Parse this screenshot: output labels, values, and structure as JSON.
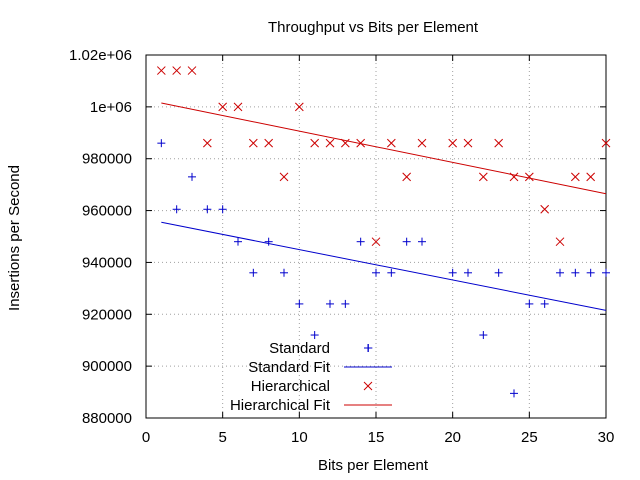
{
  "chart_data": {
    "type": "scatter",
    "title": "Throughput vs Bits per Element",
    "xlabel": "Bits per Element",
    "ylabel": "Insertions per Second",
    "xlim": [
      0,
      30
    ],
    "ylim": [
      880000,
      1020000
    ],
    "x_ticks": [
      0,
      5,
      10,
      15,
      20,
      25,
      30
    ],
    "x_tick_labels": [
      "0",
      "5",
      "10",
      "15",
      "20",
      "25",
      "30"
    ],
    "y_ticks": [
      880000,
      900000,
      920000,
      940000,
      960000,
      980000,
      1000000,
      1020000
    ],
    "y_tick_labels": [
      "880000",
      "900000",
      "920000",
      "940000",
      "960000",
      "980000",
      "1e+06",
      "1.02e+06"
    ],
    "grid": true,
    "legend_position": "bottom-left",
    "series": [
      {
        "name": "Standard",
        "kind": "points",
        "marker": "plus",
        "color": "#0000cc",
        "x": [
          1,
          2,
          3,
          4,
          5,
          6,
          7,
          8,
          9,
          10,
          11,
          12,
          13,
          14,
          14.5,
          15,
          16,
          17,
          18,
          20,
          21,
          22,
          23,
          24,
          25,
          26,
          27,
          28,
          29,
          30
        ],
        "y": [
          986000,
          960500,
          973000,
          960500,
          960500,
          948000,
          936000,
          948000,
          936000,
          924000,
          912000,
          924000,
          924000,
          948000,
          907000,
          936000,
          936000,
          948000,
          948000,
          936000,
          936000,
          912000,
          936000,
          889500,
          924000,
          924000,
          936000,
          936000,
          936000,
          936000
        ]
      },
      {
        "name": "Standard Fit",
        "kind": "line",
        "color": "#0000cc",
        "x": [
          1,
          30
        ],
        "y": [
          955500,
          921500
        ]
      },
      {
        "name": "Hierarchical",
        "kind": "points",
        "marker": "cross",
        "color": "#cc0000",
        "x": [
          1,
          2,
          3,
          4,
          5,
          6,
          7,
          8,
          9,
          10,
          11,
          12,
          13,
          14,
          15,
          16,
          17,
          18,
          20,
          21,
          22,
          23,
          24,
          25,
          26,
          27,
          28,
          29,
          30
        ],
        "y": [
          1014000,
          1014000,
          1014000,
          986000,
          1000000,
          1000000,
          986000,
          986000,
          973000,
          1000000,
          986000,
          986000,
          986000,
          986000,
          948000,
          986000,
          973000,
          986000,
          986000,
          986000,
          973000,
          986000,
          973000,
          973000,
          960500,
          948000,
          973000,
          973000,
          986000
        ]
      },
      {
        "name": "Hierarchical Fit",
        "kind": "line",
        "color": "#cc0000",
        "x": [
          1,
          30
        ],
        "y": [
          1001500,
          966500
        ]
      }
    ]
  }
}
